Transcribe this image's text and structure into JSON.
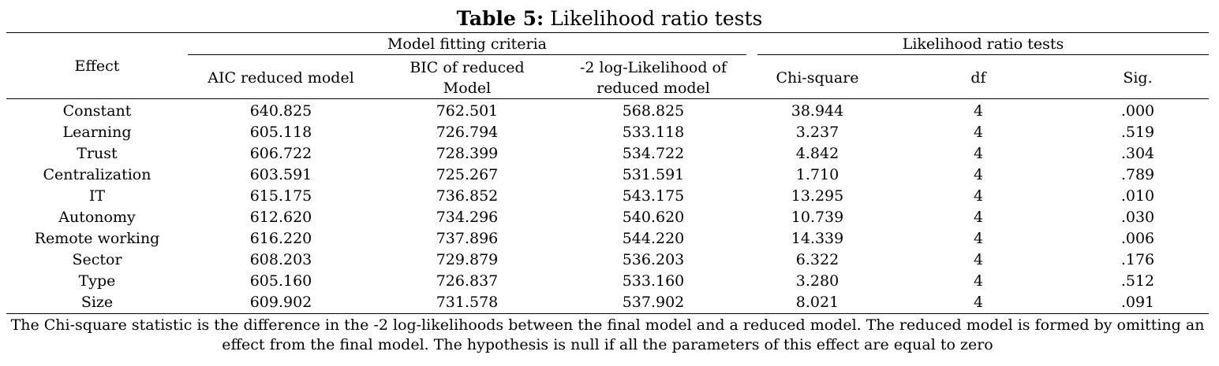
{
  "caption": {
    "label": "Table 5:",
    "title": "Likelihood ratio tests"
  },
  "header": {
    "groups": {
      "model_fitting": "Model fitting criteria",
      "lr_tests": "Likelihood ratio tests"
    },
    "columns": {
      "effect": "Effect",
      "aic": "AIC reduced model",
      "bic_line1": "BIC of reduced",
      "bic_line2": "Model",
      "loglik_line1": "-2 log-Likelihood of",
      "loglik_line2": "reduced model",
      "chisq": "Chi-square",
      "df": "df",
      "sig": "Sig."
    }
  },
  "rows": [
    {
      "effect": "Constant",
      "aic": "640.825",
      "bic": "762.501",
      "loglik": "568.825",
      "chisq": "38.944",
      "df": "4",
      "sig": ".000"
    },
    {
      "effect": "Learning",
      "aic": "605.118",
      "bic": "726.794",
      "loglik": "533.118",
      "chisq": "3.237",
      "df": "4",
      "sig": ".519"
    },
    {
      "effect": "Trust",
      "aic": "606.722",
      "bic": "728.399",
      "loglik": "534.722",
      "chisq": "4.842",
      "df": "4",
      "sig": ".304"
    },
    {
      "effect": "Centralization",
      "aic": "603.591",
      "bic": "725.267",
      "loglik": "531.591",
      "chisq": "1.710",
      "df": "4",
      "sig": ".789"
    },
    {
      "effect": "IT",
      "aic": "615.175",
      "bic": "736.852",
      "loglik": "543.175",
      "chisq": "13.295",
      "df": "4",
      "sig": ".010"
    },
    {
      "effect": "Autonomy",
      "aic": "612.620",
      "bic": "734.296",
      "loglik": "540.620",
      "chisq": "10.739",
      "df": "4",
      "sig": ".030"
    },
    {
      "effect": "Remote working",
      "aic": "616.220",
      "bic": "737.896",
      "loglik": "544.220",
      "chisq": "14.339",
      "df": "4",
      "sig": ".006"
    },
    {
      "effect": "Sector",
      "aic": "608.203",
      "bic": "729.879",
      "loglik": "536.203",
      "chisq": "6.322",
      "df": "4",
      "sig": ".176"
    },
    {
      "effect": "Type",
      "aic": "605.160",
      "bic": "726.837",
      "loglik": "533.160",
      "chisq": "3.280",
      "df": "4",
      "sig": ".512"
    },
    {
      "effect": "Size",
      "aic": "609.902",
      "bic": "731.578",
      "loglik": "537.902",
      "chisq": "8.021",
      "df": "4",
      "sig": ".091"
    }
  ],
  "note": {
    "line1": "The Chi-square statistic is the difference in the -2 log-likelihoods between the final model and a reduced model. The reduced model is formed by omitting an",
    "line2": "effect from the final model. The hypothesis is null if all the parameters of this effect are equal to zero"
  }
}
